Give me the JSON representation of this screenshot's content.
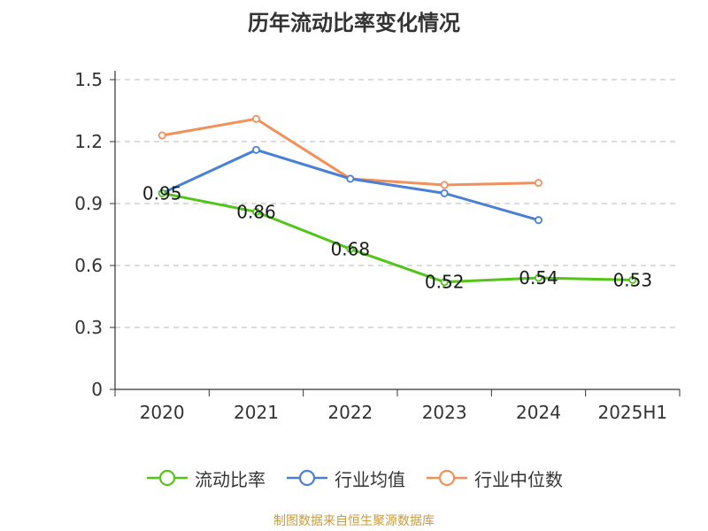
{
  "chart_data": {
    "type": "line",
    "title": "历年流动比率变化情况",
    "categories": [
      "2020",
      "2021",
      "2022",
      "2023",
      "2024",
      "2025H1"
    ],
    "yticks": [
      "0",
      "0.3",
      "0.6",
      "0.9",
      "1.2",
      "1.5"
    ],
    "ylim": [
      0,
      1.5
    ],
    "grid": true,
    "legend_position": "bottom",
    "series": [
      {
        "name": "流动比率",
        "color": "#52c41a",
        "values": [
          0.95,
          0.86,
          0.68,
          0.52,
          0.54,
          0.53
        ],
        "labels": [
          "0.95",
          "0.86",
          "0.68",
          "0.52",
          "0.54",
          "0.53"
        ]
      },
      {
        "name": "行业均值",
        "color": "#4a7fd6",
        "values": [
          0.95,
          1.16,
          1.02,
          0.95,
          0.82,
          null
        ]
      },
      {
        "name": "行业中位数",
        "color": "#f2905a",
        "values": [
          1.23,
          1.31,
          1.02,
          0.99,
          1.0,
          null
        ]
      }
    ]
  },
  "source_note": "制图数据来自恒生聚源数据库"
}
